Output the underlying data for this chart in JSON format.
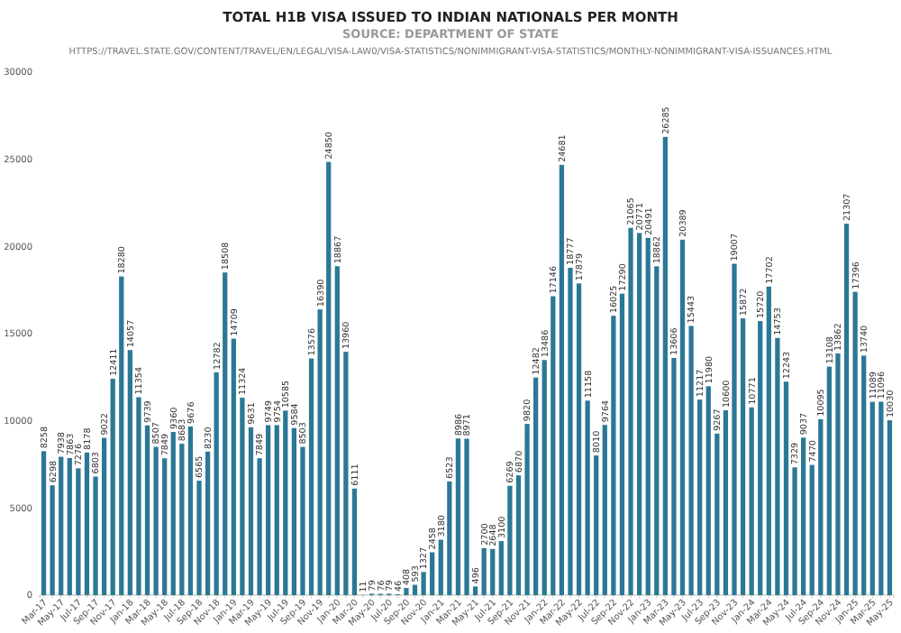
{
  "chart_data": {
    "type": "bar",
    "title": "TOTAL H1B VISA ISSUED TO INDIAN NATIONALS PER MONTH",
    "subtitle": "SOURCE: DEPARTMENT OF STATE",
    "annotations": [
      "HTTPS://TRAVEL.STATE.GOV/CONTENT/TRAVEL/EN/LEGAL/VISA-LAW0/VISA-STATISTICS/NONIMMIGRANT-VISA-STATISTICS/MONTHLY-NONIMMIGRANT-VISA-ISSUANCES.HTML"
    ],
    "categories": [
      "Mar-17",
      null,
      "May-17",
      null,
      "Jul-17",
      null,
      "Sep-17",
      null,
      "Nov-17",
      null,
      "Jan-18",
      null,
      "Mar-18",
      null,
      "May-18",
      null,
      "Jul-18",
      null,
      "Sep-18",
      null,
      "Nov-18",
      null,
      "Jan-19",
      null,
      "Mar-19",
      null,
      "May-19",
      null,
      "Jul-19",
      null,
      "Sep-19",
      null,
      "Nov-19",
      null,
      "Jan-20",
      null,
      "Mar-20",
      null,
      "May-20",
      null,
      "Jul-20",
      null,
      "Sep-20",
      null,
      "Nov-20",
      null,
      "Jan-21",
      null,
      "Mar-21",
      null,
      "May-21",
      null,
      "Jul-21",
      null,
      "Sep-21",
      null,
      "Nov-21",
      null,
      "Jan-22",
      null,
      "Mar-22",
      null,
      "May-22",
      null,
      "Jul-22",
      null,
      "Sep-22",
      null,
      "Nov-22",
      null,
      "Jan-23",
      null,
      "Mar-23",
      null,
      "May-23",
      null,
      "Jul-23",
      null,
      "Sep-23",
      null,
      "Nov-23",
      null,
      "Jan-24",
      null,
      "Mar-24",
      null,
      "May-24",
      null,
      "Jul-24",
      null,
      "Sep-24",
      null,
      "Nov-24",
      null,
      "Jan-25",
      null,
      "Mar-25",
      null,
      "May-25"
    ],
    "values": [
      8258,
      6298,
      7938,
      7863,
      7276,
      8178,
      6803,
      9022,
      12411,
      18280,
      14057,
      11354,
      9739,
      8507,
      7849,
      9360,
      8683,
      9676,
      6565,
      8230,
      12782,
      18508,
      14709,
      11324,
      9631,
      7849,
      9749,
      9754,
      10585,
      9584,
      8503,
      13576,
      16390,
      24850,
      18867,
      13960,
      6111,
      11,
      79,
      76,
      79,
      46,
      408,
      593,
      1327,
      2458,
      3180,
      6523,
      8986,
      8971,
      496,
      2700,
      2648,
      3100,
      6269,
      6870,
      9820,
      12482,
      13486,
      17146,
      24681,
      18777,
      17879,
      11158,
      8010,
      9764,
      16025,
      17290,
      21065,
      20771,
      20491,
      18862,
      26285,
      13606,
      20389,
      15443,
      11217,
      11980,
      9267,
      10600,
      19007,
      15872,
      10771,
      15720,
      17702,
      14753,
      12243,
      7329,
      9037,
      7470,
      10095,
      13108,
      13862,
      21307,
      17396,
      13740,
      11089,
      11096,
      10030
    ],
    "color": "#2b7896",
    "data_labels": true,
    "ylim": [
      0,
      30000
    ],
    "yticks": [
      0,
      5000,
      10000,
      15000,
      20000,
      25000,
      30000
    ],
    "grid": false
  }
}
